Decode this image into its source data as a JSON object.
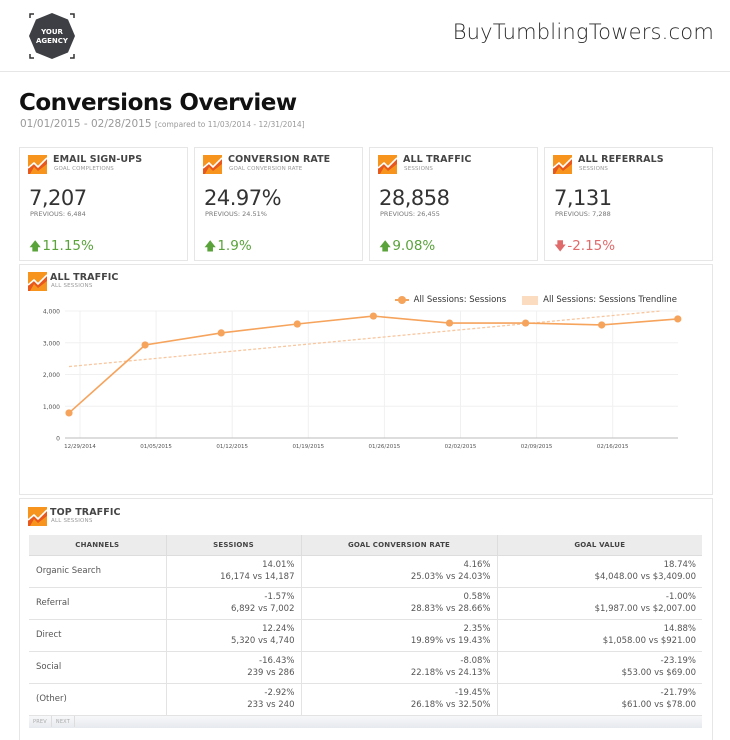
{
  "header": {
    "logo_line1": "YOUR",
    "logo_line2": "AGENCY",
    "site_name": "BuyTumblingTowers.com"
  },
  "page": {
    "title": "Conversions Overview",
    "date_range": "01/01/2015 - 02/28/2015",
    "compare_range": "[compared to 11/03/2014 - 12/31/2014]"
  },
  "kpis": [
    {
      "title": "EMAIL SIGN-UPS",
      "subtitle": "GOAL COMPLETIONS",
      "value": "7,207",
      "previous": "PREVIOUS: 6,484",
      "change": "11.15%",
      "direction": "up",
      "arrow": "🡅"
    },
    {
      "title": "CONVERSION RATE",
      "subtitle": "GOAL CONVERSION RATE",
      "value": "24.97%",
      "previous": "PREVIOUS: 24.51%",
      "change": "1.9%",
      "direction": "up",
      "arrow": "🡅"
    },
    {
      "title": "ALL TRAFFIC",
      "subtitle": "SESSIONS",
      "value": "28,858",
      "previous": "PREVIOUS: 26,455",
      "change": "9.08%",
      "direction": "up",
      "arrow": "🡅"
    },
    {
      "title": "ALL REFERRALS",
      "subtitle": "SESSIONS",
      "value": "7,131",
      "previous": "PREVIOUS: 7,288",
      "change": "-2.15%",
      "direction": "down",
      "arrow": "🡇"
    }
  ],
  "traffic_chart": {
    "title": "ALL TRAFFIC",
    "subtitle": "ALL SESSIONS",
    "legend": [
      "All Sessions: Sessions",
      "All Sessions: Sessions Trendline"
    ]
  },
  "chart_data": {
    "type": "line",
    "title": "ALL TRAFFIC",
    "subtitle": "ALL SESSIONS",
    "xlabel": "",
    "ylabel": "",
    "x_tick_labels": [
      "12/29/2014",
      "01/05/2015",
      "01/12/2015",
      "01/19/2015",
      "01/26/2015",
      "02/02/2015",
      "02/09/2015",
      "02/16/2015"
    ],
    "y_tick_labels": [
      "0",
      "1,000",
      "2,000",
      "3,000",
      "4,000"
    ],
    "ylim": [
      0,
      4000
    ],
    "grid": true,
    "legend_position": "top-right",
    "series": [
      {
        "name": "All Sessions: Sessions",
        "color": "#f6a35c",
        "values": [
          790,
          2930,
          3310,
          3590,
          3840,
          3620,
          3620,
          3560,
          3750
        ]
      },
      {
        "name": "All Sessions: Sessions Trendline",
        "color": "#fbdcc0",
        "style": "dashed",
        "values": [
          2250,
          2480,
          2700,
          2920,
          3150,
          3380,
          3600,
          3830,
          4050
        ]
      }
    ]
  },
  "top_traffic": {
    "title": "TOP TRAFFIC",
    "subtitle": "ALL SESSIONS",
    "columns": [
      "CHANNELS",
      "SESSIONS",
      "GOAL CONVERSION RATE",
      "GOAL VALUE"
    ],
    "rows": [
      {
        "channel": "Organic Search",
        "sessions_change": "14.01%",
        "sessions": "16,174 vs 14,187",
        "gcr_change": "4.16%",
        "gcr": "25.03% vs 24.03%",
        "gv_change": "18.74%",
        "gv": "$4,048.00 vs $3,409.00"
      },
      {
        "channel": "Referral",
        "sessions_change": "-1.57%",
        "sessions": "6,892 vs 7,002",
        "gcr_change": "0.58%",
        "gcr": "28.83% vs 28.66%",
        "gv_change": "-1.00%",
        "gv": "$1,987.00 vs $2,007.00"
      },
      {
        "channel": "Direct",
        "sessions_change": "12.24%",
        "sessions": "5,320 vs 4,740",
        "gcr_change": "2.35%",
        "gcr": "19.89% vs 19.43%",
        "gv_change": "14.88%",
        "gv": "$1,058.00 vs $921.00"
      },
      {
        "channel": "Social",
        "sessions_change": "-16.43%",
        "sessions": "239 vs 286",
        "gcr_change": "-8.08%",
        "gcr": "22.18% vs 24.13%",
        "gv_change": "-23.19%",
        "gv": "$53.00 vs $69.00"
      },
      {
        "channel": "(Other)",
        "sessions_change": "-2.92%",
        "sessions": "233 vs 240",
        "gcr_change": "-19.45%",
        "gcr": "26.18% vs 32.50%",
        "gv_change": "-21.79%",
        "gv": "$61.00 vs $78.00"
      }
    ],
    "pager": {
      "prev": "PREV",
      "next": "NEXT"
    }
  },
  "colors": {
    "accent": "#f6a35c",
    "trend": "#fbdcc0",
    "up": "#5aa33b",
    "down": "#e06b6b",
    "icon_orange": "#f7941d",
    "icon_red": "#e8581c"
  }
}
